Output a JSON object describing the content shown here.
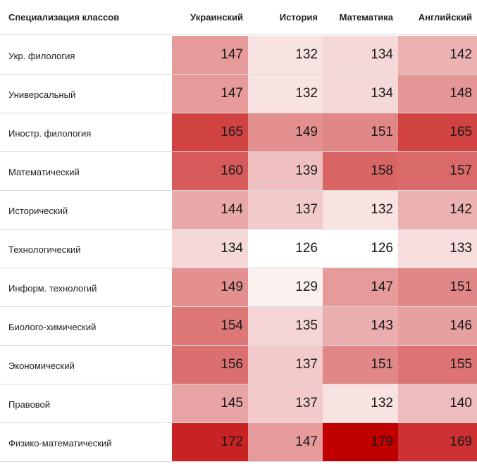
{
  "chart_data": {
    "type": "heatmap",
    "corner_label": "Специализация классов",
    "columns": [
      "Украинский",
      "История",
      "Математика",
      "Английский"
    ],
    "rows": [
      {
        "label": "Укр. филология",
        "values": [
          147,
          132,
          134,
          142
        ]
      },
      {
        "label": "Универсальный",
        "values": [
          147,
          132,
          134,
          148
        ]
      },
      {
        "label": "Иностр. филология",
        "values": [
          165,
          149,
          151,
          165
        ]
      },
      {
        "label": "Математический",
        "values": [
          160,
          139,
          158,
          157
        ]
      },
      {
        "label": "Исторический",
        "values": [
          144,
          137,
          132,
          142
        ]
      },
      {
        "label": "Технологический",
        "values": [
          134,
          126,
          126,
          133
        ]
      },
      {
        "label": "Информ. технологий",
        "values": [
          149,
          129,
          147,
          151
        ]
      },
      {
        "label": "Биолого-химический",
        "values": [
          154,
          135,
          143,
          146
        ]
      },
      {
        "label": "Экономический",
        "values": [
          156,
          137,
          151,
          155
        ]
      },
      {
        "label": "Правовой",
        "values": [
          145,
          137,
          132,
          140
        ]
      },
      {
        "label": "Физико-математический",
        "values": [
          172,
          147,
          179,
          169
        ]
      }
    ],
    "color_scale": {
      "min": 126,
      "max": 179,
      "low_color": "#ffffff",
      "high_color": "#c00000"
    }
  }
}
